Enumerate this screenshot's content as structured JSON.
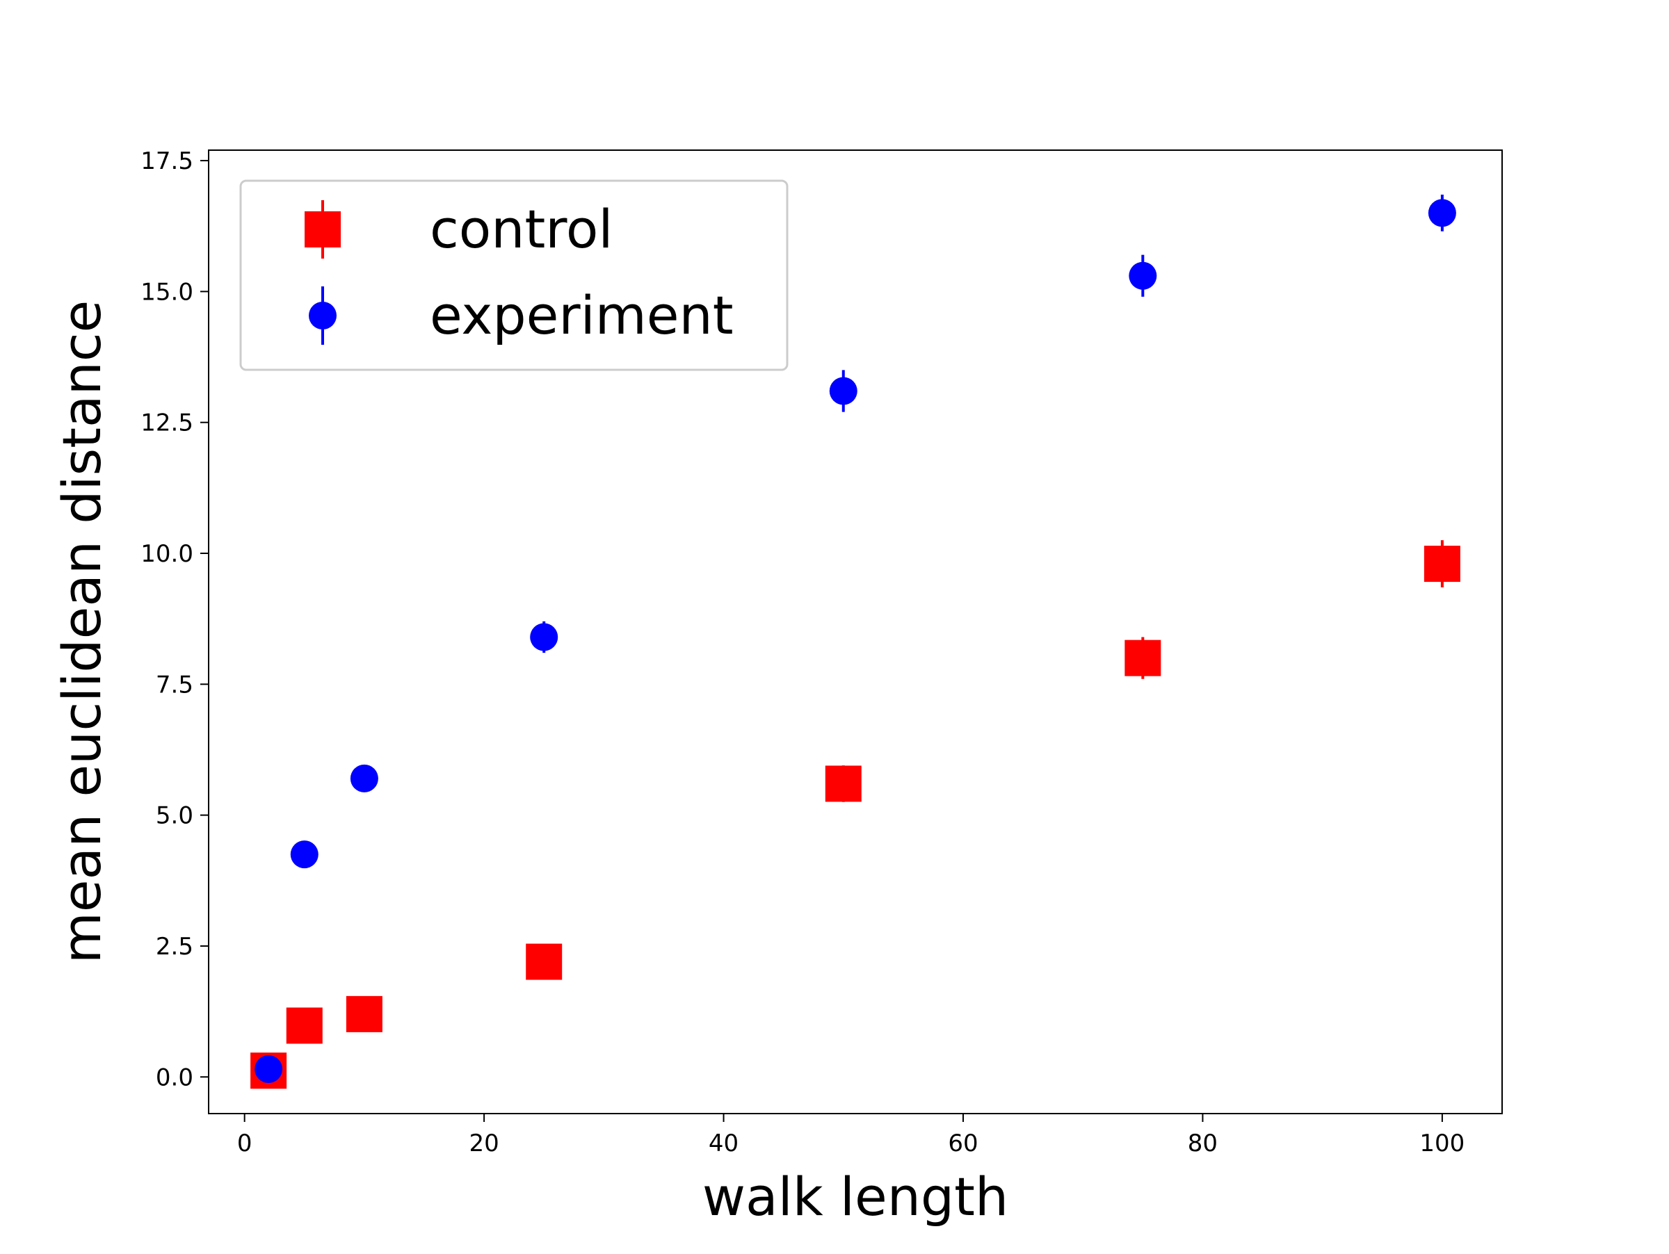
{
  "chart_data": {
    "type": "scatter",
    "xlabel": "walk length",
    "ylabel": "mean euclidean distance",
    "xlim": [
      -3,
      105
    ],
    "ylim": [
      -0.7,
      17.7
    ],
    "xticks": [
      0,
      20,
      40,
      60,
      80,
      100
    ],
    "xtick_labels": [
      "0",
      "20",
      "40",
      "60",
      "80",
      "100"
    ],
    "yticks": [
      0.0,
      2.5,
      5.0,
      7.5,
      10.0,
      12.5,
      15.0,
      17.5
    ],
    "ytick_labels": [
      "0.0",
      "2.5",
      "5.0",
      "7.5",
      "10.0",
      "12.5",
      "15.0",
      "17.5"
    ],
    "grid": false,
    "legend_position": "upper-left",
    "series": [
      {
        "name": "control",
        "marker": "square",
        "color": "#ff0000",
        "x": [
          2,
          5,
          10,
          25,
          50,
          75,
          100
        ],
        "y": [
          0.12,
          0.98,
          1.2,
          2.2,
          5.6,
          8.0,
          9.8
        ],
        "yerr": [
          0.05,
          0.1,
          0.1,
          0.15,
          0.35,
          0.4,
          0.45
        ]
      },
      {
        "name": "experiment",
        "marker": "circle",
        "color": "#0000ff",
        "x": [
          2,
          5,
          10,
          25,
          50,
          75,
          100
        ],
        "y": [
          0.15,
          4.25,
          5.7,
          8.4,
          13.1,
          15.3,
          16.5
        ],
        "yerr": [
          0.05,
          0.1,
          0.1,
          0.3,
          0.4,
          0.4,
          0.35
        ]
      }
    ]
  }
}
